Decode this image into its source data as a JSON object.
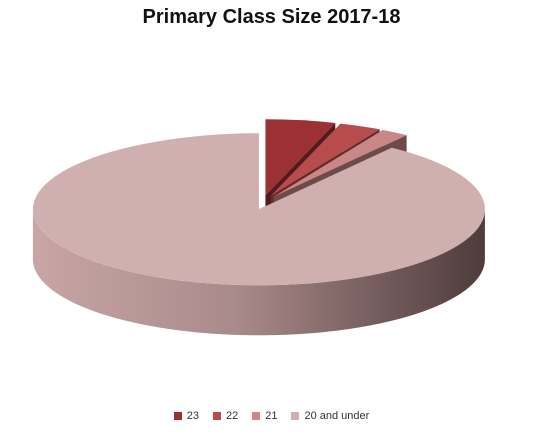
{
  "chart_data": {
    "type": "pie",
    "style": "3d-exploded",
    "title": "Primary Class Size 2017-18",
    "categories": [
      "23",
      "22",
      "21",
      "20 and under"
    ],
    "values": [
      5,
      3,
      2,
      90
    ],
    "colors": [
      "#9b3133",
      "#b84c4c",
      "#c98787",
      "#d0b0ae"
    ],
    "legend_position": "bottom"
  }
}
